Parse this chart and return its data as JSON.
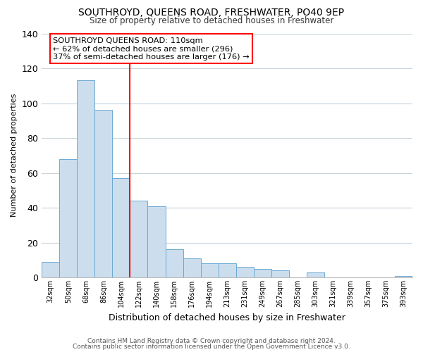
{
  "title": "SOUTHROYD, QUEENS ROAD, FRESHWATER, PO40 9EP",
  "subtitle": "Size of property relative to detached houses in Freshwater",
  "xlabel": "Distribution of detached houses by size in Freshwater",
  "ylabel": "Number of detached properties",
  "bar_labels": [
    "32sqm",
    "50sqm",
    "68sqm",
    "86sqm",
    "104sqm",
    "122sqm",
    "140sqm",
    "158sqm",
    "176sqm",
    "194sqm",
    "213sqm",
    "231sqm",
    "249sqm",
    "267sqm",
    "285sqm",
    "303sqm",
    "321sqm",
    "339sqm",
    "357sqm",
    "375sqm",
    "393sqm"
  ],
  "bar_values": [
    9,
    68,
    113,
    96,
    57,
    44,
    41,
    16,
    11,
    8,
    8,
    6,
    5,
    4,
    0,
    3,
    0,
    0,
    0,
    0,
    1
  ],
  "bar_color": "#ccdded",
  "bar_edgecolor": "#6aaad4",
  "vline_x": 4.5,
  "vline_color": "red",
  "ylim": [
    0,
    140
  ],
  "yticks": [
    0,
    20,
    40,
    60,
    80,
    100,
    120,
    140
  ],
  "annotation_title": "SOUTHROYD QUEENS ROAD: 110sqm",
  "annotation_line1": "← 62% of detached houses are smaller (296)",
  "annotation_line2": "37% of semi-detached houses are larger (176) →",
  "annotation_box_color": "white",
  "annotation_box_edgecolor": "red",
  "footer1": "Contains HM Land Registry data © Crown copyright and database right 2024.",
  "footer2": "Contains public sector information licensed under the Open Government Licence v3.0.",
  "background_color": "white",
  "grid_color": "#c8d4dc"
}
